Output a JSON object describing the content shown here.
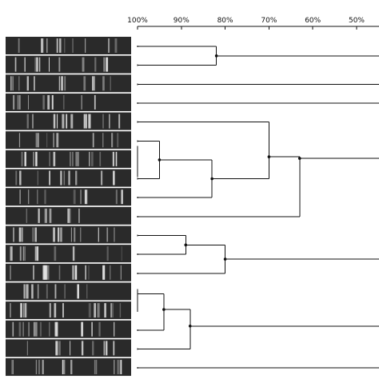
{
  "axis": {
    "tick_labels": [
      "100%",
      "90%",
      "80%",
      "70%",
      "60%",
      "50%"
    ],
    "tick_values": [
      100,
      90,
      80,
      70,
      60,
      50
    ]
  },
  "lanes": {
    "count": 18,
    "band_pattern": "dna-fingerprint-gel"
  },
  "tree": {
    "merges": [
      {
        "lanes": [
          0,
          1
        ],
        "similarity": 82
      },
      {
        "lanes": [
          5,
          6,
          7
        ],
        "similarity": 95
      },
      {
        "lanes": [
          5,
          6,
          7,
          8
        ],
        "similarity": 83
      },
      {
        "lanes": [
          4,
          5,
          6,
          7,
          8
        ],
        "similarity": 70
      },
      {
        "lanes": [
          4,
          5,
          6,
          7,
          8,
          9
        ],
        "similarity": 63
      },
      {
        "lanes": [
          10,
          11
        ],
        "similarity": 89
      },
      {
        "lanes": [
          10,
          11,
          12
        ],
        "similarity": 80
      },
      {
        "lanes": [
          13,
          14,
          15
        ],
        "similarity": 94
      },
      {
        "lanes": [
          13,
          14,
          15,
          16
        ],
        "similarity": 88
      }
    ],
    "singletons": [
      2,
      3,
      17
    ]
  },
  "colors": {
    "lane_background": "#2a2a2a",
    "band": "#e8e8e8",
    "line": "#111111"
  }
}
